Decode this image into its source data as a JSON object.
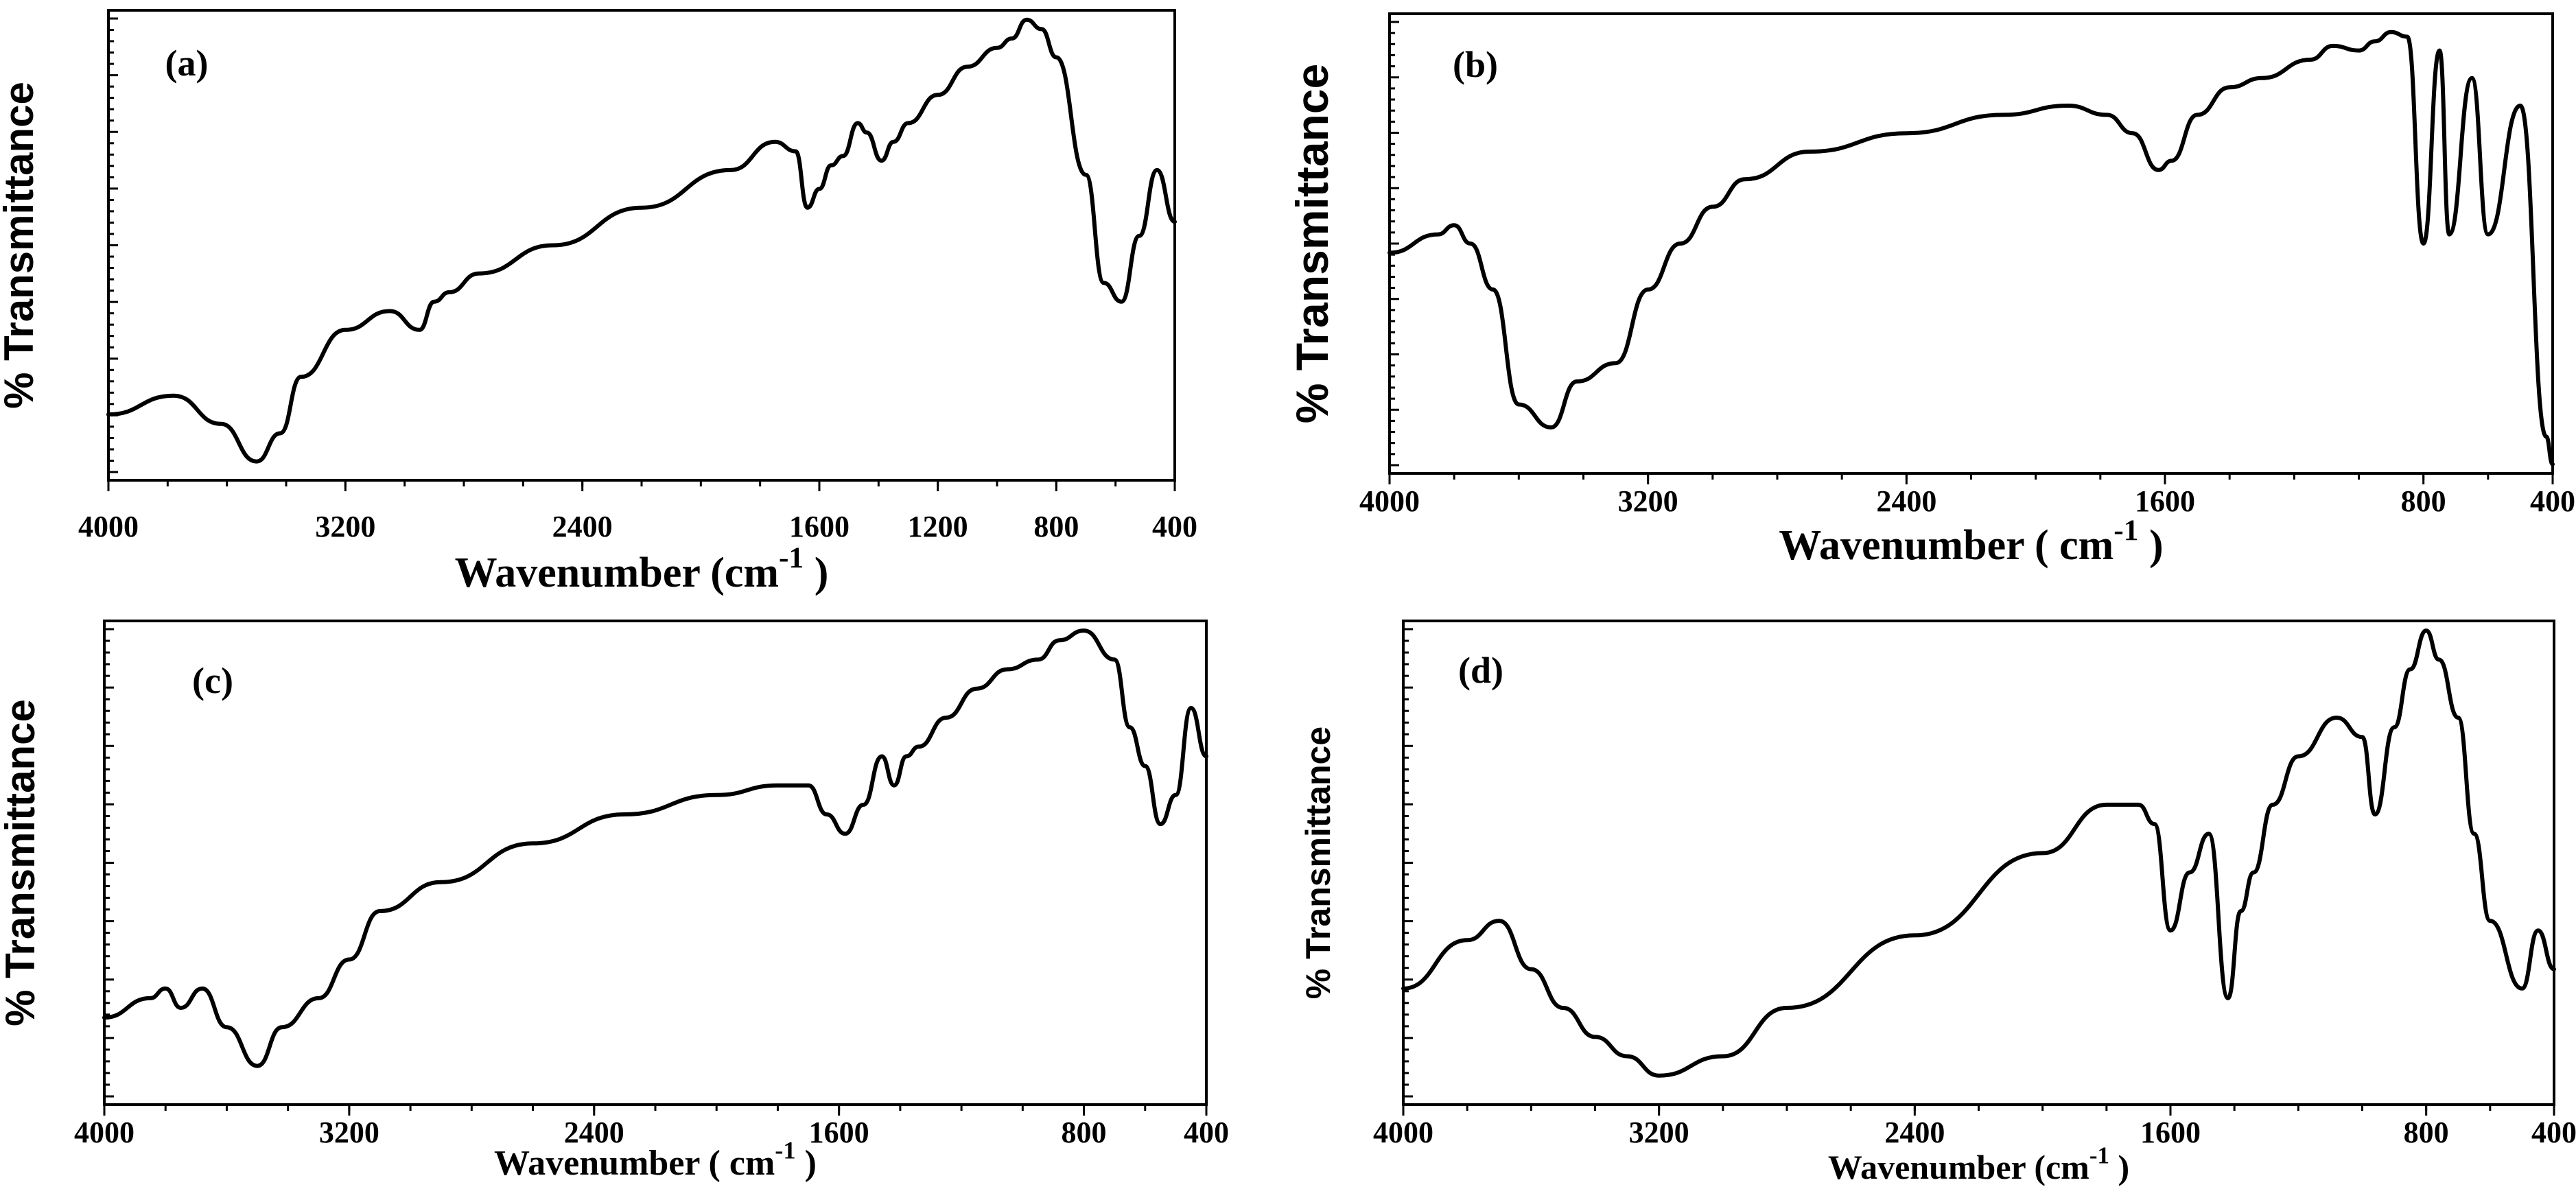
{
  "chart_data": [
    {
      "type": "line",
      "panel_label": "(a)",
      "xlabel": "Wavenumber (cm",
      "xlabel_sup": "-1",
      "xlabel_end": ")",
      "ylabel": "% Transmittance",
      "xlim": [
        4000,
        400
      ],
      "ylim": [
        0,
        100
      ],
      "x_reversed": true,
      "xticks": [
        4000,
        3200,
        2400,
        1600,
        1200,
        800,
        400
      ],
      "x": [
        4000,
        3780,
        3620,
        3500,
        3420,
        3350,
        3200,
        3050,
        2950,
        2900,
        2850,
        2750,
        2500,
        2200,
        1900,
        1750,
        1680,
        1640,
        1600,
        1560,
        1520,
        1470,
        1440,
        1390,
        1350,
        1300,
        1200,
        1100,
        1000,
        950,
        900,
        850,
        800,
        700,
        640,
        580,
        520,
        460,
        400
      ],
      "y": [
        14,
        18,
        12,
        4,
        10,
        22,
        32,
        36,
        32,
        38,
        40,
        44,
        50,
        58,
        66,
        72,
        70,
        58,
        62,
        67,
        69,
        76,
        74,
        68,
        72,
        76,
        82,
        88,
        92,
        94,
        98,
        96,
        90,
        65,
        42,
        38,
        52,
        66,
        55
      ]
    },
    {
      "type": "line",
      "panel_label": "(b)",
      "xlabel": "Wavenumber ( cm",
      "xlabel_sup": "-1",
      "xlabel_end": ")",
      "ylabel": "% Transmittance",
      "xlim": [
        4000,
        400
      ],
      "ylim": [
        0,
        100
      ],
      "x_reversed": true,
      "xticks": [
        4000,
        3200,
        2400,
        1600,
        800,
        400
      ],
      "x": [
        4000,
        3850,
        3800,
        3750,
        3680,
        3600,
        3500,
        3420,
        3300,
        3200,
        3100,
        3000,
        2900,
        2700,
        2400,
        2100,
        1900,
        1780,
        1700,
        1620,
        1580,
        1500,
        1400,
        1300,
        1150,
        1080,
        1000,
        950,
        900,
        850,
        800,
        750,
        720,
        650,
        600,
        500,
        420,
        400
      ],
      "y": [
        48,
        52,
        54,
        50,
        40,
        15,
        10,
        20,
        24,
        40,
        50,
        58,
        64,
        70,
        74,
        78,
        80,
        78,
        74,
        66,
        68,
        78,
        84,
        86,
        90,
        93,
        92,
        94,
        96,
        95,
        50,
        92,
        52,
        86,
        52,
        80,
        8,
        2
      ]
    },
    {
      "type": "line",
      "panel_label": "(c)",
      "xlabel": "Wavenumber ( cm",
      "xlabel_sup": "-1",
      "xlabel_end": ")",
      "ylabel": "% Transmittance",
      "xlim": [
        4000,
        400
      ],
      "ylim": [
        0,
        100
      ],
      "x_reversed": true,
      "xticks": [
        4000,
        3200,
        2400,
        1600,
        800,
        400
      ],
      "x": [
        4000,
        3850,
        3800,
        3750,
        3680,
        3600,
        3500,
        3420,
        3300,
        3200,
        3100,
        2900,
        2600,
        2300,
        2000,
        1800,
        1700,
        1640,
        1580,
        1520,
        1460,
        1420,
        1380,
        1340,
        1250,
        1150,
        1050,
        950,
        880,
        800,
        700,
        650,
        600,
        550,
        500,
        450,
        400
      ],
      "y": [
        18,
        22,
        24,
        20,
        24,
        16,
        8,
        16,
        22,
        30,
        40,
        46,
        54,
        60,
        64,
        66,
        66,
        60,
        56,
        62,
        72,
        66,
        72,
        74,
        80,
        86,
        90,
        92,
        96,
        98,
        92,
        78,
        70,
        58,
        64,
        82,
        72
      ]
    },
    {
      "type": "line",
      "panel_label": "(d)",
      "xlabel": "Wavenumber (cm",
      "xlabel_sup": "-1",
      "xlabel_end": ")",
      "ylabel": "% Transmittance",
      "xlim": [
        4000,
        400
      ],
      "ylim": [
        0,
        100
      ],
      "x_reversed": true,
      "xticks": [
        4000,
        3200,
        2400,
        1600,
        800,
        400
      ],
      "x": [
        4000,
        3800,
        3700,
        3600,
        3500,
        3400,
        3300,
        3200,
        3000,
        2800,
        2400,
        2000,
        1800,
        1700,
        1650,
        1600,
        1540,
        1480,
        1420,
        1380,
        1340,
        1280,
        1200,
        1080,
        1000,
        960,
        900,
        850,
        800,
        760,
        700,
        650,
        600,
        500,
        450,
        400
      ],
      "y": [
        24,
        34,
        38,
        28,
        20,
        14,
        10,
        6,
        10,
        20,
        35,
        52,
        62,
        62,
        58,
        36,
        48,
        56,
        22,
        40,
        48,
        62,
        72,
        80,
        76,
        60,
        78,
        90,
        98,
        92,
        80,
        56,
        38,
        24,
        36,
        28
      ]
    }
  ]
}
